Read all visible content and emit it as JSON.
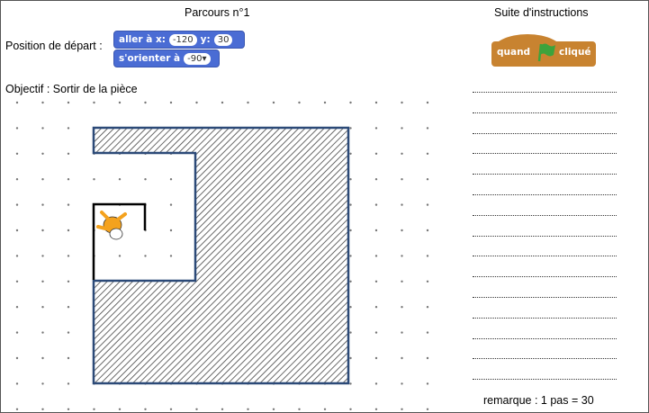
{
  "title": "Parcours n°1",
  "start_label": "Position de départ :",
  "goto_block": {
    "label": "aller à x:",
    "x": "-120",
    "y_label": "y:",
    "y": "30"
  },
  "direction_block": {
    "label": "s'orienter à",
    "value": "-90"
  },
  "objective": "Objectif : Sortir de la pièce",
  "instructions_title": "Suite d'instructions",
  "hat_block": {
    "left": "quand",
    "icon": "green-flag-icon",
    "right": "cliqué"
  },
  "blank_lines": 15,
  "remark": "remarque : 1 pas = 30",
  "colors": {
    "motion_block": "#4a6cd4",
    "event_block": "#c88330",
    "wall": "#2c4a78",
    "flag": "#3ca33c"
  }
}
